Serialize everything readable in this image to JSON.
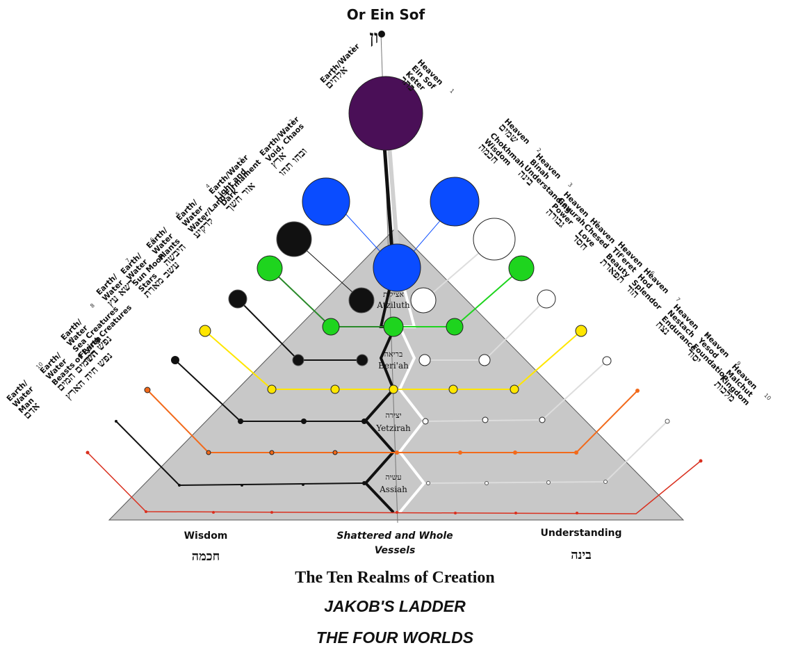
{
  "top": {
    "title": "Or Ein Sof",
    "glyph": "ון"
  },
  "left_labels": [
    {
      "num": "1",
      "lines": [
        "Earth/Water",
        "אלהים"
      ]
    },
    {
      "num": "2",
      "lines": [
        "Earth/Water",
        "Void, Chaos",
        "ארץ",
        "ובהו תהו"
      ]
    },
    {
      "num": "3",
      "lines": [
        "Earth/Water",
        "Light and",
        "Dark",
        "אור חשך"
      ]
    },
    {
      "num": "4",
      "lines": [
        "Earth/",
        "Water",
        "Water/Land Firmament",
        "לרקיע"
      ]
    },
    {
      "num": "5",
      "lines": [
        "Earth/",
        "Water",
        "Plants",
        "היבשה"
      ]
    },
    {
      "num": "6",
      "lines": [
        "Earth/",
        "Water",
        "Sun Moon",
        "Stars",
        "עשב מארת"
      ]
    },
    {
      "num": "7",
      "lines": [
        "Earth/",
        "Water",
        "דשא עץ"
      ]
    },
    {
      "num": "8",
      "lines": [
        "Earth/",
        "Water",
        "Sea Creatures",
        "Flying Creatures",
        "נפש חיה"
      ]
    },
    {
      "num": "9",
      "lines": [
        "Earth/",
        "Water",
        "Beasts of Earth",
        "השמים המים",
        "נפש חיה הארץ"
      ]
    },
    {
      "num": "10",
      "lines": [
        "Earth/",
        "Water",
        "Man",
        "אדם"
      ]
    }
  ],
  "right_labels": [
    {
      "num": "1",
      "lines": [
        "Heaven",
        "Ein Sof",
        "Keter",
        "כתר"
      ]
    },
    {
      "num": "2",
      "lines": [
        "Heaven",
        "שמים",
        "Chokhmah",
        "Wisdom",
        "חכמה"
      ]
    },
    {
      "num": "3",
      "lines": [
        "Heaven",
        "Binah",
        "Understanding",
        "בינה"
      ]
    },
    {
      "num": "4",
      "lines": [
        "Heaven",
        "Gevurah",
        "Power",
        "גבורה"
      ]
    },
    {
      "num": "5",
      "lines": [
        "Heaven",
        "Chesed",
        "Love",
        "חסד"
      ]
    },
    {
      "num": "6",
      "lines": [
        "Heaven",
        "Tif'eret",
        "Beauty",
        "תפארת"
      ]
    },
    {
      "num": "7",
      "lines": [
        "Heaven",
        "Hod",
        "Splendor",
        "הוד"
      ]
    },
    {
      "num": "8",
      "lines": [
        "Heaven",
        "Nestach",
        "Endurance",
        "נצח"
      ]
    },
    {
      "num": "9",
      "lines": [
        "Heaven",
        "Yesod",
        "Foundation",
        "יסוד"
      ]
    },
    {
      "num": "10",
      "lines": [
        "Heaven",
        "Malchut",
        "Kingdom",
        "מלכות"
      ]
    }
  ],
  "worlds": [
    {
      "heb": "אצילות",
      "name": "Atziluth"
    },
    {
      "heb": "בריאה",
      "name": "Beri'ah"
    },
    {
      "heb": "יצירה",
      "name": "Yetzirah"
    },
    {
      "heb": "עשיה",
      "name": "Assiah"
    }
  ],
  "bottom": {
    "wisdom": "Wisdom",
    "wisdom_heb": "חכמה",
    "center_line1": "Shattered and Whole",
    "center_line2": "Vessels",
    "understanding": "Understanding",
    "understanding_heb": "בינה"
  },
  "titles": {
    "t1": "The Ten Realms of Creation",
    "t2": "JAKOB'S LADDER",
    "t3": "THE FOUR WORLDS"
  },
  "colors": {
    "pyramid": "#c8c8c8",
    "keter": "#4a0f57",
    "blue": "#0a4cff",
    "green": "#1ed41e",
    "yellow": "#ffe600",
    "orange": "#f26a1b",
    "red": "#d9301f"
  }
}
